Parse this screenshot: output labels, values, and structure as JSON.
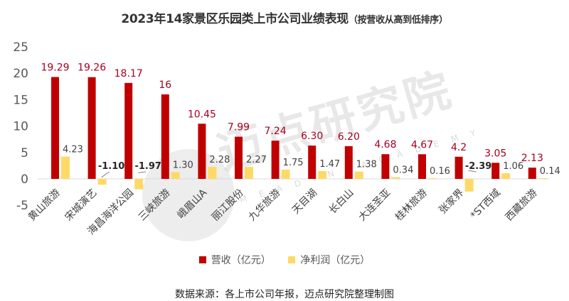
{
  "title": {
    "main": "2023年14家景区乐园类上市公司业绩表现",
    "sub": "（按营收从高到低排序）"
  },
  "legend": {
    "revenue": "营收（亿元）",
    "profit": "净利润（亿元）"
  },
  "source": "数据来源：各上市公司年报，迈点研究院整理制图",
  "watermark": {
    "text": "迈点研究院",
    "sub": "MEADIN ACADEMY"
  },
  "colors": {
    "revenue": "#C00000",
    "profit": "#FFD966",
    "revenue_label": "#A50021",
    "profit_label": "#404040",
    "axis": "#D9D9D9"
  },
  "chart_data": {
    "type": "bar",
    "title": "2023年14家景区乐园类上市公司业绩表现（按营收从高到低排序）",
    "xlabel": "",
    "ylabel": "",
    "ylim": [
      -5,
      25
    ],
    "yticks": [
      -5,
      0,
      5,
      10,
      15,
      20,
      25
    ],
    "grid": false,
    "legend_position": "bottom",
    "categories": [
      "黄山旅游",
      "宋城演艺",
      "海昌海洋公园",
      "三峡旅游",
      "峨眉山A",
      "丽江股份",
      "九华旅游",
      "天目湖",
      "长白山",
      "大连圣亚",
      "桂林旅游",
      "张家界",
      "*ST西域",
      "西藏旅游"
    ],
    "series": [
      {
        "name": "营收（亿元）",
        "values": [
          19.29,
          19.26,
          18.17,
          16,
          10.45,
          7.99,
          7.24,
          6.3,
          6.2,
          4.68,
          4.67,
          4.2,
          3.05,
          2.13
        ]
      },
      {
        "name": "净利润（亿元）",
        "values": [
          4.23,
          -1.1,
          -1.97,
          1.3,
          2.28,
          2.27,
          1.75,
          1.47,
          1.38,
          0.34,
          0.16,
          -2.39,
          1.06,
          0.14
        ]
      }
    ],
    "revenue_labels": [
      "19.29",
      "19.26",
      "18.17",
      "16",
      "10.45",
      "7.99",
      "7.24",
      "6.30",
      "6.20",
      "4.68",
      "4.67",
      "4.2",
      "3.05",
      "2.13"
    ],
    "profit_labels": [
      "4.23",
      "-1.10",
      "-1.97",
      "1.30",
      "2.28",
      "2.27",
      "1.75",
      "1.47",
      "1.38",
      "0.34",
      "0.16",
      "-2.39",
      "1.06",
      "0.14"
    ]
  }
}
